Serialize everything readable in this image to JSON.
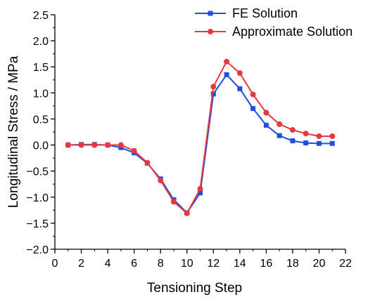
{
  "chart_data": {
    "type": "line",
    "xlabel": "Tensioning Step",
    "ylabel": "Longitudinal Stress / MPa",
    "xlim": [
      0,
      22
    ],
    "ylim": [
      -2.0,
      2.5
    ],
    "xticks": [
      0,
      2,
      4,
      6,
      8,
      10,
      12,
      14,
      16,
      18,
      20,
      22
    ],
    "yticks": [
      -2.0,
      -1.5,
      -1.0,
      -0.5,
      0.0,
      0.5,
      1.0,
      1.5,
      2.0,
      2.5
    ],
    "xtick_labels": [
      "0",
      "2",
      "4",
      "6",
      "8",
      "10",
      "12",
      "14",
      "16",
      "18",
      "20",
      "22"
    ],
    "ytick_labels": [
      "−2.0",
      "−1.5",
      "−1.0",
      "−0.5",
      "0.0",
      "0.5",
      "1.0",
      "1.5",
      "2.0",
      "2.5"
    ],
    "grid": false,
    "legend": "top-right",
    "x": [
      1,
      2,
      3,
      4,
      5,
      6,
      7,
      8,
      9,
      10,
      11,
      12,
      13,
      14,
      15,
      16,
      17,
      18,
      19,
      20,
      21
    ],
    "series": [
      {
        "name": "FE Solution",
        "color": "#1f4fe0",
        "marker": "square",
        "values": [
          0.0,
          0.01,
          0.01,
          0.0,
          -0.05,
          -0.15,
          -0.35,
          -0.65,
          -1.05,
          -1.3,
          -0.92,
          0.98,
          1.35,
          1.08,
          0.7,
          0.38,
          0.18,
          0.08,
          0.04,
          0.03,
          0.03
        ]
      },
      {
        "name": "Approximate Solution",
        "color": "#e8383d",
        "marker": "circle",
        "values": [
          0.0,
          0.0,
          0.0,
          0.0,
          0.0,
          -0.11,
          -0.34,
          -0.68,
          -1.09,
          -1.31,
          -0.84,
          1.12,
          1.6,
          1.38,
          0.97,
          0.62,
          0.4,
          0.29,
          0.22,
          0.17,
          0.17
        ]
      }
    ]
  }
}
